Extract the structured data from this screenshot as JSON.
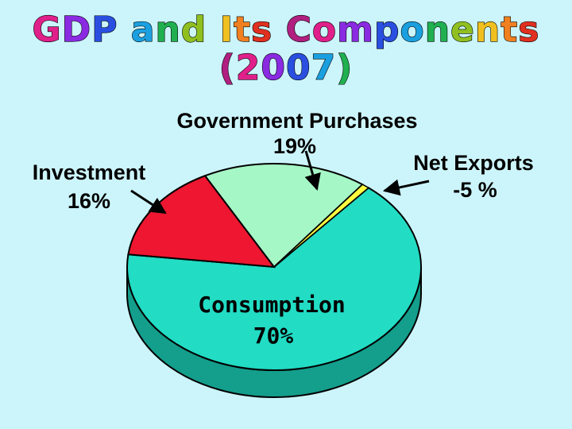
{
  "title": "GDP and Its Components (2007)",
  "title_colors": [
    "#e0208a",
    "#8a2be2",
    "#2a4fe0",
    "#1aa0e0",
    "#20b050",
    "#90c020",
    "#f0c020",
    "#f08020",
    "#e03020",
    "#b02080"
  ],
  "chart_data": {
    "type": "pie",
    "style": "3d",
    "title": "GDP and Its Components (2007)",
    "slices": [
      {
        "label": "Consumption",
        "value_label": "70%",
        "value": 70,
        "color": "#22dcc4",
        "side_color": "#149e8c"
      },
      {
        "label": "Investment",
        "value_label": "16%",
        "value": 16,
        "color": "#ee1630",
        "side_color": "#a80e22"
      },
      {
        "label": "Government Purchases",
        "value_label": "19%",
        "value": 19,
        "color": "#a6f7c6",
        "side_color": "#6cc796"
      },
      {
        "label": "Net Exports",
        "value_label": "-5 %",
        "value": -5,
        "color": "#ffff40",
        "side_color": "#c8c820"
      }
    ]
  }
}
